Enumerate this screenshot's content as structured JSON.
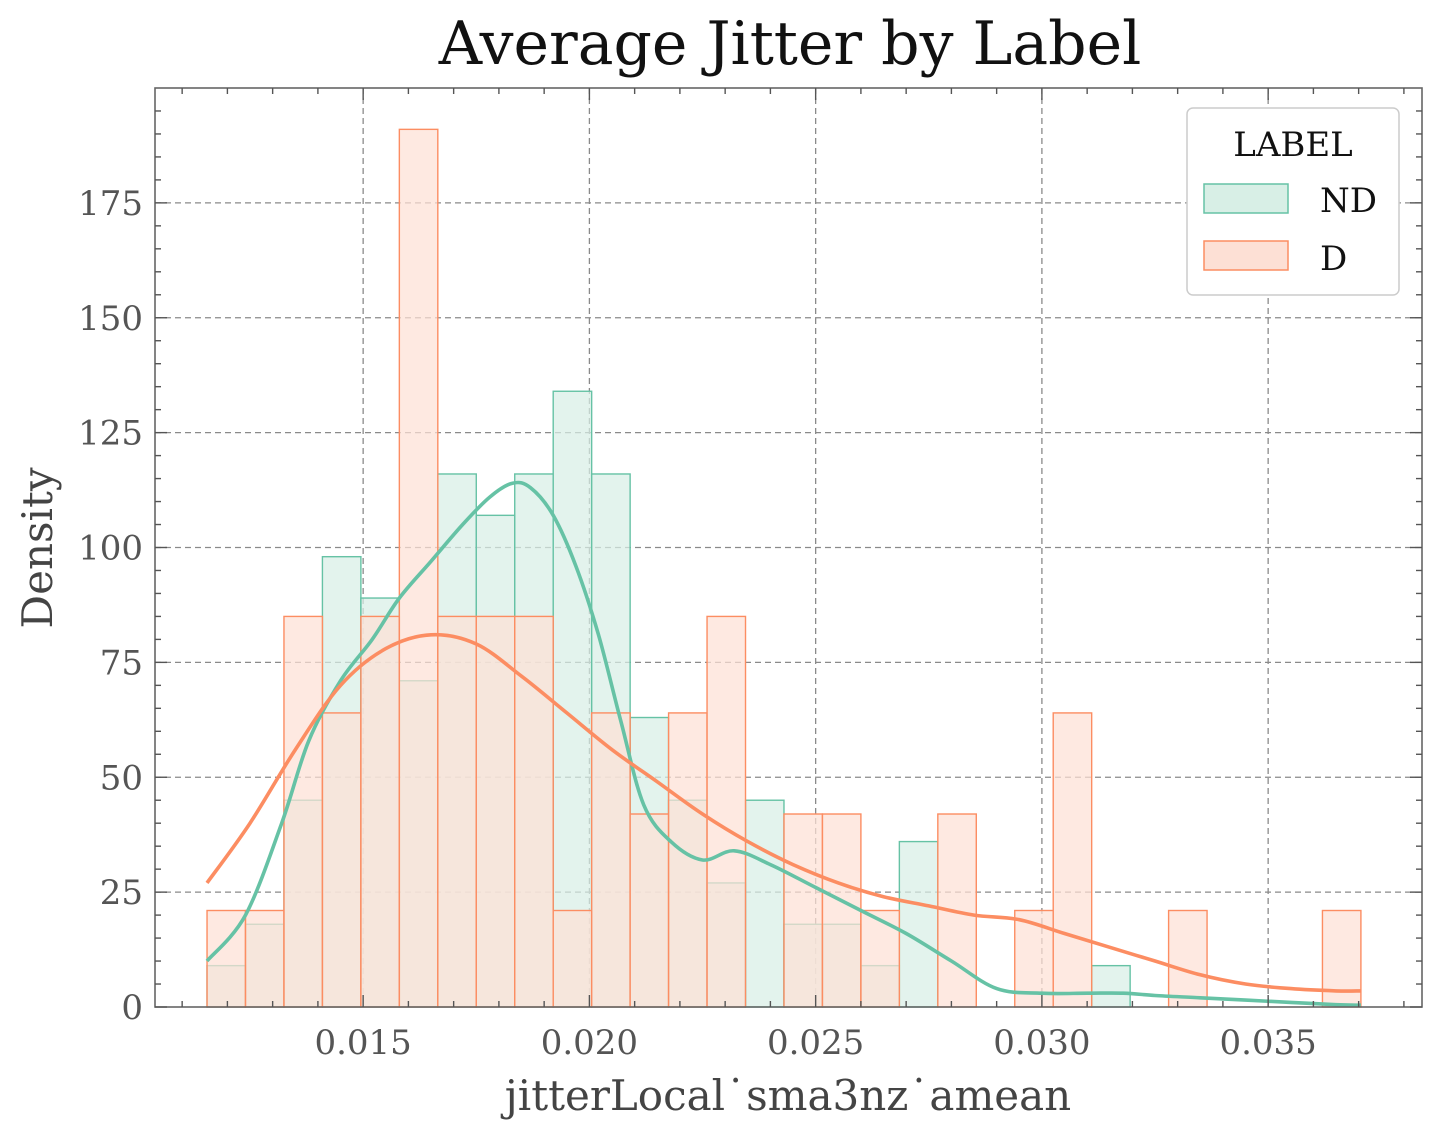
{
  "chart_data": {
    "type": "histogram",
    "title": "Average Jitter by Label",
    "xlabel": "jitterLocal˙sma3nz˙amean",
    "ylabel": "Density",
    "xlim": [
      0.0104,
      0.0384
    ],
    "ylim": [
      0,
      200
    ],
    "xticks": [
      0.015,
      0.02,
      0.025,
      0.03,
      0.035
    ],
    "xtick_labels": [
      "0.015",
      "0.020",
      "0.025",
      "0.030",
      "0.035"
    ],
    "yticks": [
      0,
      25,
      50,
      75,
      100,
      125,
      150,
      175
    ],
    "ytick_labels": [
      "0",
      "25",
      "50",
      "75",
      "100",
      "125",
      "150",
      "175"
    ],
    "grid": true,
    "legend": {
      "title": "LABEL",
      "position": "top-right"
    },
    "bin_edges": [
      0.01155,
      0.0124,
      0.01325,
      0.0141,
      0.01495,
      0.0158,
      0.01665,
      0.0175,
      0.01835,
      0.0192,
      0.02005,
      0.0209,
      0.02175,
      0.0226,
      0.02345,
      0.0243,
      0.02515,
      0.026,
      0.02685,
      0.0277,
      0.02855,
      0.0294,
      0.03025,
      0.0311,
      0.03195,
      0.0328,
      0.03365,
      0.0345,
      0.03535,
      0.0362,
      0.03705
    ],
    "series": [
      {
        "name": "ND",
        "color": "#66c2a5",
        "fill": "#d8efe6",
        "density": [
          9,
          18,
          45,
          98,
          89,
          71,
          116,
          107,
          116,
          134,
          116,
          63,
          45,
          27,
          45,
          18,
          18,
          9,
          36,
          0,
          0,
          0,
          0,
          9,
          0,
          0,
          0,
          0,
          0,
          0
        ],
        "kde_x": [
          0.01155,
          0.0124,
          0.0132,
          0.0138,
          0.0145,
          0.0152,
          0.0158,
          0.0165,
          0.0172,
          0.0178,
          0.0183,
          0.0187,
          0.0192,
          0.0197,
          0.0202,
          0.0207,
          0.0212,
          0.0218,
          0.0225,
          0.0232,
          0.024,
          0.025,
          0.026,
          0.027,
          0.028,
          0.029,
          0.03,
          0.031,
          0.0318,
          0.0325,
          0.0335,
          0.0345,
          0.0355,
          0.0365,
          0.03705
        ],
        "kde_y": [
          10,
          20,
          40,
          58,
          71,
          80,
          89,
          97,
          105,
          111,
          114,
          113,
          107,
          96,
          81,
          62,
          44,
          36,
          32,
          34,
          31,
          26,
          21,
          16,
          10,
          4,
          3,
          3,
          3,
          2.5,
          2,
          1.5,
          1,
          0.5,
          0.4
        ]
      },
      {
        "name": "D",
        "color": "#fc8d62",
        "fill": "#fde0d5",
        "density": [
          21,
          21,
          85,
          64,
          85,
          191,
          85,
          85,
          85,
          21,
          64,
          42,
          64,
          85,
          0,
          42,
          42,
          21,
          0,
          42,
          0,
          21,
          64,
          0,
          0,
          21,
          0,
          0,
          0,
          21
        ],
        "kde_x": [
          0.01155,
          0.0125,
          0.0135,
          0.0145,
          0.0155,
          0.0165,
          0.0175,
          0.0185,
          0.0195,
          0.0205,
          0.0215,
          0.0225,
          0.0235,
          0.0245,
          0.0255,
          0.0265,
          0.0275,
          0.0285,
          0.0295,
          0.0305,
          0.0315,
          0.0325,
          0.0335,
          0.0345,
          0.0355,
          0.0365,
          0.03705
        ],
        "kde_y": [
          27,
          40,
          56,
          70,
          78,
          81,
          79,
          72,
          64,
          56,
          49,
          42,
          36,
          31,
          27,
          24,
          22,
          20,
          19,
          16,
          13,
          10,
          7,
          5,
          4,
          3.5,
          3.5
        ]
      }
    ]
  }
}
